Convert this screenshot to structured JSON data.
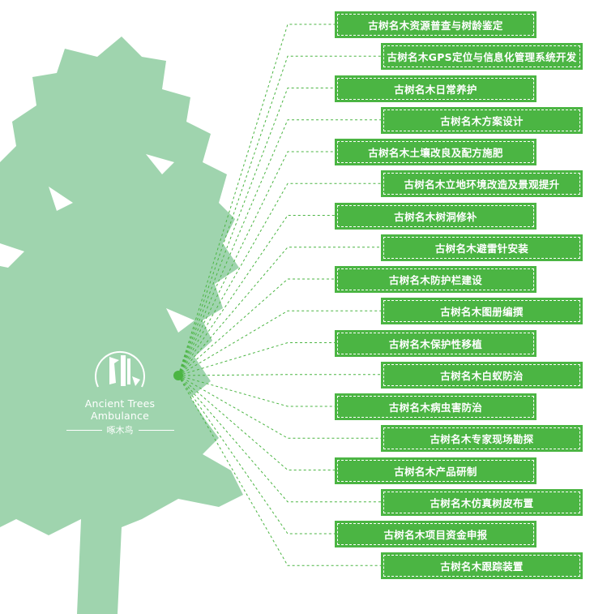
{
  "colors": {
    "tree": "#9fd4ae",
    "box": "#4bb543",
    "line": "#4bb543"
  },
  "logo": {
    "english": "Ancient Trees Ambulance",
    "chinese": "啄木鸟",
    "icon": "woodpecker-icon"
  },
  "services": [
    "古树名木资源普查与树龄鉴定",
    "古树名木GPS定位与信息化管理系统开发",
    "古树名木日常养护",
    "古树名木方案设计",
    "古树名木土壤改良及配方施肥",
    "古树名木立地环境改造及景观提升",
    "古树名木树洞修补",
    "古树名木避雷针安装",
    "古树名木防护栏建设",
    "古树名木图册编撰",
    "古树名木保护性移植",
    "古树名木白蚁防治",
    "古树名木病虫害防治",
    "古树名木专家现场勘探",
    "古树名木产品研制",
    "古树名木仿真树皮布置",
    "古树名木项目资金申报",
    "古树名木跟踪装置"
  ]
}
